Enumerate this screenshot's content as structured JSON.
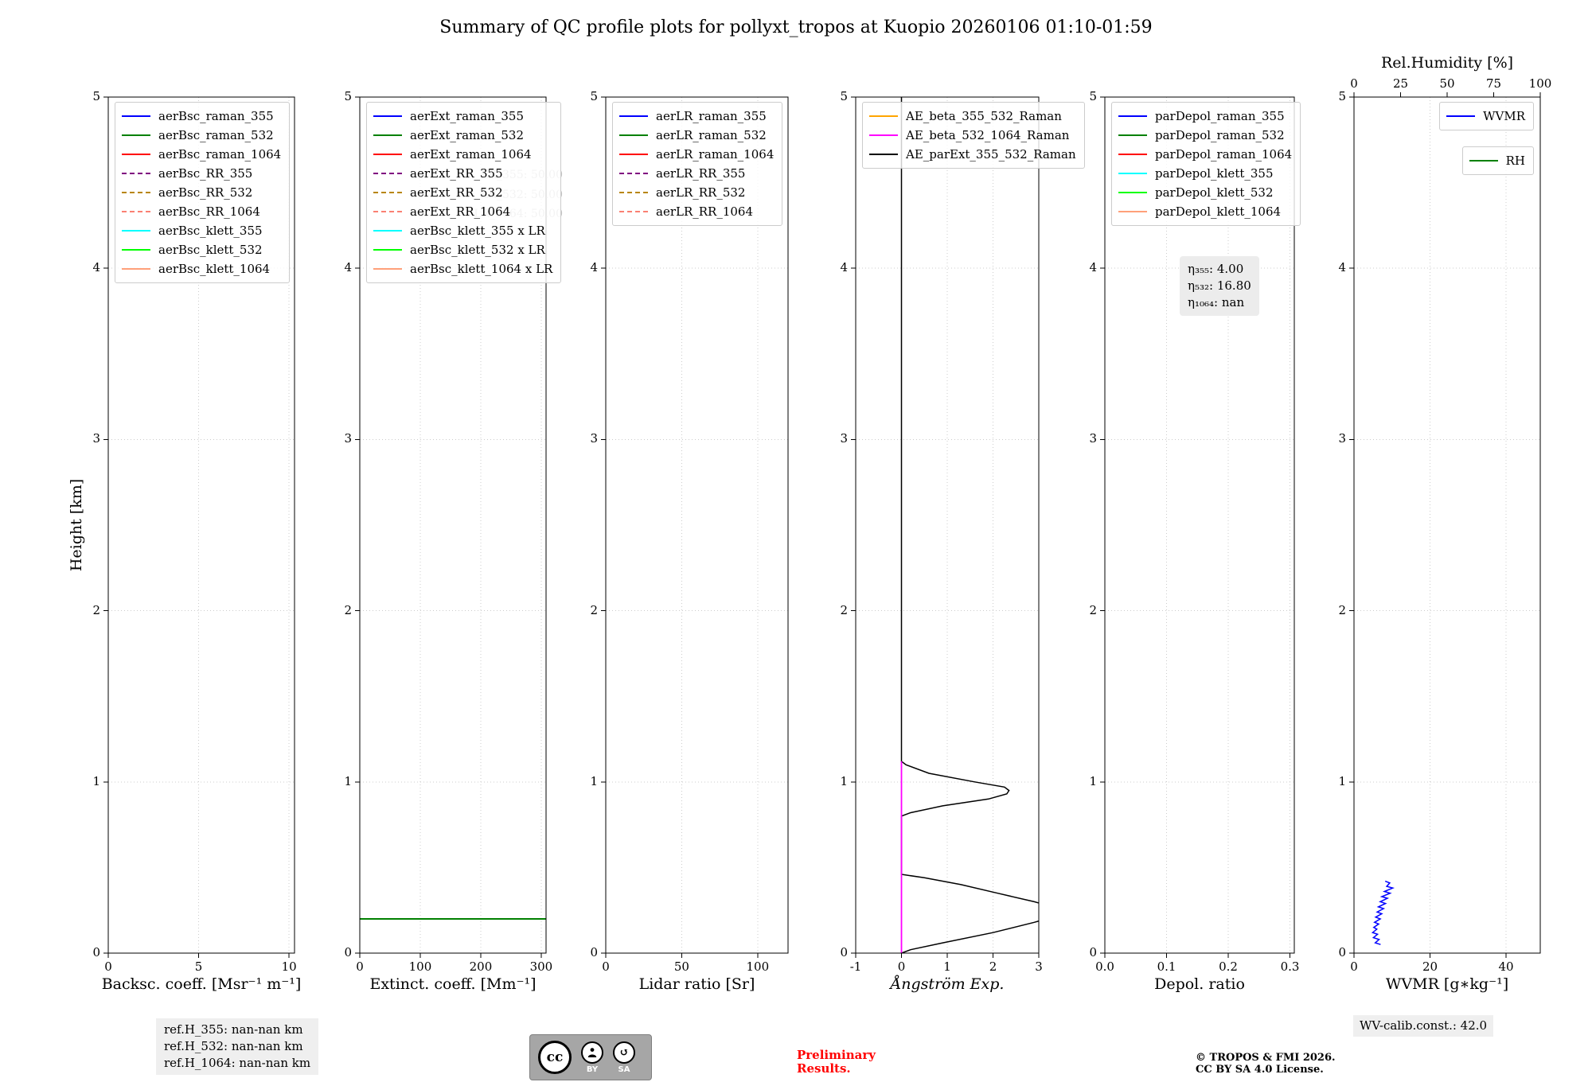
{
  "title": "Summary of QC profile plots for pollyxt_tropos at Kuopio 20260106 01:10-01:59",
  "ylabel": "Height [km]",
  "chart_data": [
    {
      "type": "line",
      "xlabel": "Backsc. coeff. [Msr⁻¹ m⁻¹]",
      "xlim": [
        0,
        10.3
      ],
      "xticks": [
        0,
        5,
        10
      ],
      "xtick_labels": [
        "0",
        "5",
        "10"
      ],
      "ylim": [
        0,
        5
      ],
      "yticks": [
        0,
        1,
        2,
        3,
        4,
        5
      ],
      "legends": [
        {
          "pos": "left",
          "entries": [
            {
              "label": "aerBsc_raman_355",
              "color": "#0000ff",
              "dash": false
            },
            {
              "label": "aerBsc_raman_532",
              "color": "#008000",
              "dash": false
            },
            {
              "label": "aerBsc_raman_1064",
              "color": "#ff0000",
              "dash": false
            },
            {
              "label": "aerBsc_RR_355",
              "color": "#800080",
              "dash": true
            },
            {
              "label": "aerBsc_RR_532",
              "color": "#b8860b",
              "dash": true
            },
            {
              "label": "aerBsc_RR_1064",
              "color": "#fa8072",
              "dash": true
            },
            {
              "label": "aerBsc_klett_355",
              "color": "#00ffff",
              "dash": false
            },
            {
              "label": "aerBsc_klett_532",
              "color": "#00ff00",
              "dash": false
            },
            {
              "label": "aerBsc_klett_1064",
              "color": "#ffa07a",
              "dash": false
            }
          ]
        }
      ],
      "series": []
    },
    {
      "type": "line",
      "xlabel": "Extinct. coeff. [Mm⁻¹]",
      "xlim": [
        0,
        308
      ],
      "xticks": [
        0,
        100,
        200,
        300
      ],
      "xtick_labels": [
        "0",
        "100",
        "200",
        "300"
      ],
      "ylim": [
        0,
        5
      ],
      "yticks": [
        0,
        1,
        2,
        3,
        4,
        5
      ],
      "legends": [
        {
          "pos": "left",
          "entries": [
            {
              "label": "aerExt_raman_355",
              "color": "#0000ff",
              "dash": false
            },
            {
              "label": "aerExt_raman_532",
              "color": "#008000",
              "dash": false
            },
            {
              "label": "aerExt_raman_1064",
              "color": "#ff0000",
              "dash": false
            },
            {
              "label": "aerExt_RR_355",
              "color": "#800080",
              "dash": true
            },
            {
              "label": "aerExt_RR_532",
              "color": "#b8860b",
              "dash": true
            },
            {
              "label": "aerExt_RR_1064",
              "color": "#fa8072",
              "dash": true
            },
            {
              "label": "aerBsc_klett_355 x LR",
              "color": "#00ffff",
              "dash": false
            },
            {
              "label": "aerBsc_klett_532 x LR",
              "color": "#00ff00",
              "dash": false
            },
            {
              "label": "aerBsc_klett_1064 x LR",
              "color": "#ffa07a",
              "dash": false
            }
          ]
        }
      ],
      "watermark": [
        "LR_355: 50.00",
        "LR_532: 50.00",
        "LR_1064: 50.00"
      ],
      "series": [
        {
          "name": "aerExt_raman_532",
          "color": "#008000",
          "width": 2,
          "x": [
            0,
            308
          ],
          "y": [
            0.2,
            0.2
          ]
        }
      ]
    },
    {
      "type": "line",
      "xlabel": "Lidar ratio [Sr]",
      "xlim": [
        0,
        120
      ],
      "xticks": [
        0,
        50,
        100
      ],
      "xtick_labels": [
        "0",
        "50",
        "100"
      ],
      "ylim": [
        0,
        5
      ],
      "yticks": [
        0,
        1,
        2,
        3,
        4,
        5
      ],
      "legends": [
        {
          "pos": "left",
          "entries": [
            {
              "label": "aerLR_raman_355",
              "color": "#0000ff",
              "dash": false
            },
            {
              "label": "aerLR_raman_532",
              "color": "#008000",
              "dash": false
            },
            {
              "label": "aerLR_raman_1064",
              "color": "#ff0000",
              "dash": false
            },
            {
              "label": "aerLR_RR_355",
              "color": "#800080",
              "dash": true
            },
            {
              "label": "aerLR_RR_532",
              "color": "#b8860b",
              "dash": true
            },
            {
              "label": "aerLR_RR_1064",
              "color": "#fa8072",
              "dash": true
            }
          ]
        }
      ],
      "series": []
    },
    {
      "type": "line",
      "xlabel": "Ångström Exp.",
      "xlim": [
        -1,
        3
      ],
      "xticks": [
        -1,
        0,
        1,
        2,
        3
      ],
      "xtick_labels": [
        "-1",
        "0",
        "1",
        "2",
        "3"
      ],
      "ylim": [
        0,
        5
      ],
      "yticks": [
        0,
        1,
        2,
        3,
        4,
        5
      ],
      "legends": [
        {
          "pos": "left",
          "entries": [
            {
              "label": "AE_beta_355_532_Raman",
              "color": "#ffa500",
              "dash": false
            },
            {
              "label": "AE_beta_532_1064_Raman",
              "color": "#ff00ff",
              "dash": false
            },
            {
              "label": "AE_parExt_355_532_Raman",
              "color": "#000000",
              "dash": false
            }
          ]
        }
      ],
      "series": [
        {
          "name": "AE_parExt_355_532_Raman",
          "color": "#000000",
          "width": 1.5,
          "x": [
            0,
            0,
            0.1,
            0.6,
            1.6,
            2.25,
            2.35,
            2.3,
            1.9,
            0.9,
            0.2,
            0,
            0,
            0.5,
            1.3,
            2.1,
            2.9,
            3.3,
            3.5,
            3.3,
            2.9,
            2.0,
            0.9,
            0.2,
            0
          ],
          "y": [
            5,
            1.12,
            1.1,
            1.05,
            1.0,
            0.97,
            0.95,
            0.93,
            0.9,
            0.86,
            0.82,
            0.8,
            0.46,
            0.44,
            0.4,
            0.35,
            0.3,
            0.27,
            0.24,
            0.21,
            0.18,
            0.12,
            0.06,
            0.02,
            0
          ]
        },
        {
          "name": "AE_beta_532_1064_Raman",
          "color": "#ff00ff",
          "width": 1.8,
          "x": [
            0,
            0
          ],
          "y": [
            0,
            1.12
          ]
        }
      ]
    },
    {
      "type": "line",
      "xlabel": "Depol. ratio",
      "xlim": [
        0,
        0.307
      ],
      "xticks": [
        0,
        0.1,
        0.2,
        0.3
      ],
      "xtick_labels": [
        "0.0",
        "0.1",
        "0.2",
        "0.3"
      ],
      "ylim": [
        0,
        5
      ],
      "yticks": [
        0,
        1,
        2,
        3,
        4,
        5
      ],
      "legends": [
        {
          "pos": "left",
          "entries": [
            {
              "label": "parDepol_raman_355",
              "color": "#0000ff",
              "dash": false
            },
            {
              "label": "parDepol_raman_532",
              "color": "#008000",
              "dash": false
            },
            {
              "label": "parDepol_raman_1064",
              "color": "#ff0000",
              "dash": false
            },
            {
              "label": "parDepol_klett_355",
              "color": "#00ffff",
              "dash": false
            },
            {
              "label": "parDepol_klett_532",
              "color": "#00ff00",
              "dash": false
            },
            {
              "label": "parDepol_klett_1064",
              "color": "#ffa07a",
              "dash": false
            }
          ]
        }
      ],
      "annotation": {
        "lines": [
          "η₃₅₅: 4.00",
          "η₅₃₂: 16.80",
          "η₁₀₆₄: nan"
        ]
      },
      "series": []
    },
    {
      "type": "line",
      "xlabel": "WVMR [g∗kg⁻¹]",
      "xlim": [
        0,
        49
      ],
      "xticks": [
        0,
        20,
        40
      ],
      "xtick_labels": [
        "0",
        "20",
        "40"
      ],
      "ylim": [
        0,
        5
      ],
      "yticks": [
        0,
        1,
        2,
        3,
        4,
        5
      ],
      "top_axis": {
        "label": "Rel.Humidity [%]",
        "xlim": [
          0,
          100
        ],
        "ticks": [
          0,
          25,
          50,
          75,
          100
        ],
        "tick_labels": [
          "0",
          "25",
          "50",
          "75",
          "100"
        ]
      },
      "legends": [
        {
          "pos": "right",
          "entries": [
            {
              "label": "WVMR",
              "color": "#0000ff",
              "dash": false
            }
          ]
        },
        {
          "pos": "right",
          "entries": [
            {
              "label": "RH",
              "color": "#008000",
              "dash": false
            }
          ]
        }
      ],
      "series": [
        {
          "name": "WVMR",
          "color": "#0000ff",
          "width": 1.5,
          "x": [
            7.0,
            5.6,
            6.6,
            5.1,
            6.2,
            4.9,
            6.0,
            5.2,
            6.5,
            5.4,
            6.9,
            5.7,
            7.3,
            6.1,
            7.8,
            6.4,
            8.3,
            6.9,
            8.8,
            7.3,
            9.5,
            8.0,
            10.2,
            8.6,
            9.4,
            8.2
          ],
          "y": [
            0.05,
            0.06,
            0.08,
            0.09,
            0.11,
            0.12,
            0.14,
            0.15,
            0.17,
            0.18,
            0.2,
            0.21,
            0.23,
            0.24,
            0.26,
            0.27,
            0.29,
            0.3,
            0.32,
            0.33,
            0.35,
            0.36,
            0.38,
            0.39,
            0.41,
            0.42
          ]
        }
      ]
    }
  ],
  "footer": {
    "ref_heights": {
      "l1": "ref.H_355: nan-nan km",
      "l2": "ref.H_532: nan-nan km",
      "l3": "ref.H_1064: nan-nan km"
    },
    "preliminary_l1": "Preliminary",
    "preliminary_l2": "Results.",
    "copyright_l1": "© TROPOS & FMI 2026.",
    "copyright_l2": "CC BY SA 4.0 License.",
    "wv_calib": "WV-calib.const.: 42.0",
    "cc_badge": {
      "cc": "cc",
      "by": "BY",
      "sa": "SA"
    }
  }
}
